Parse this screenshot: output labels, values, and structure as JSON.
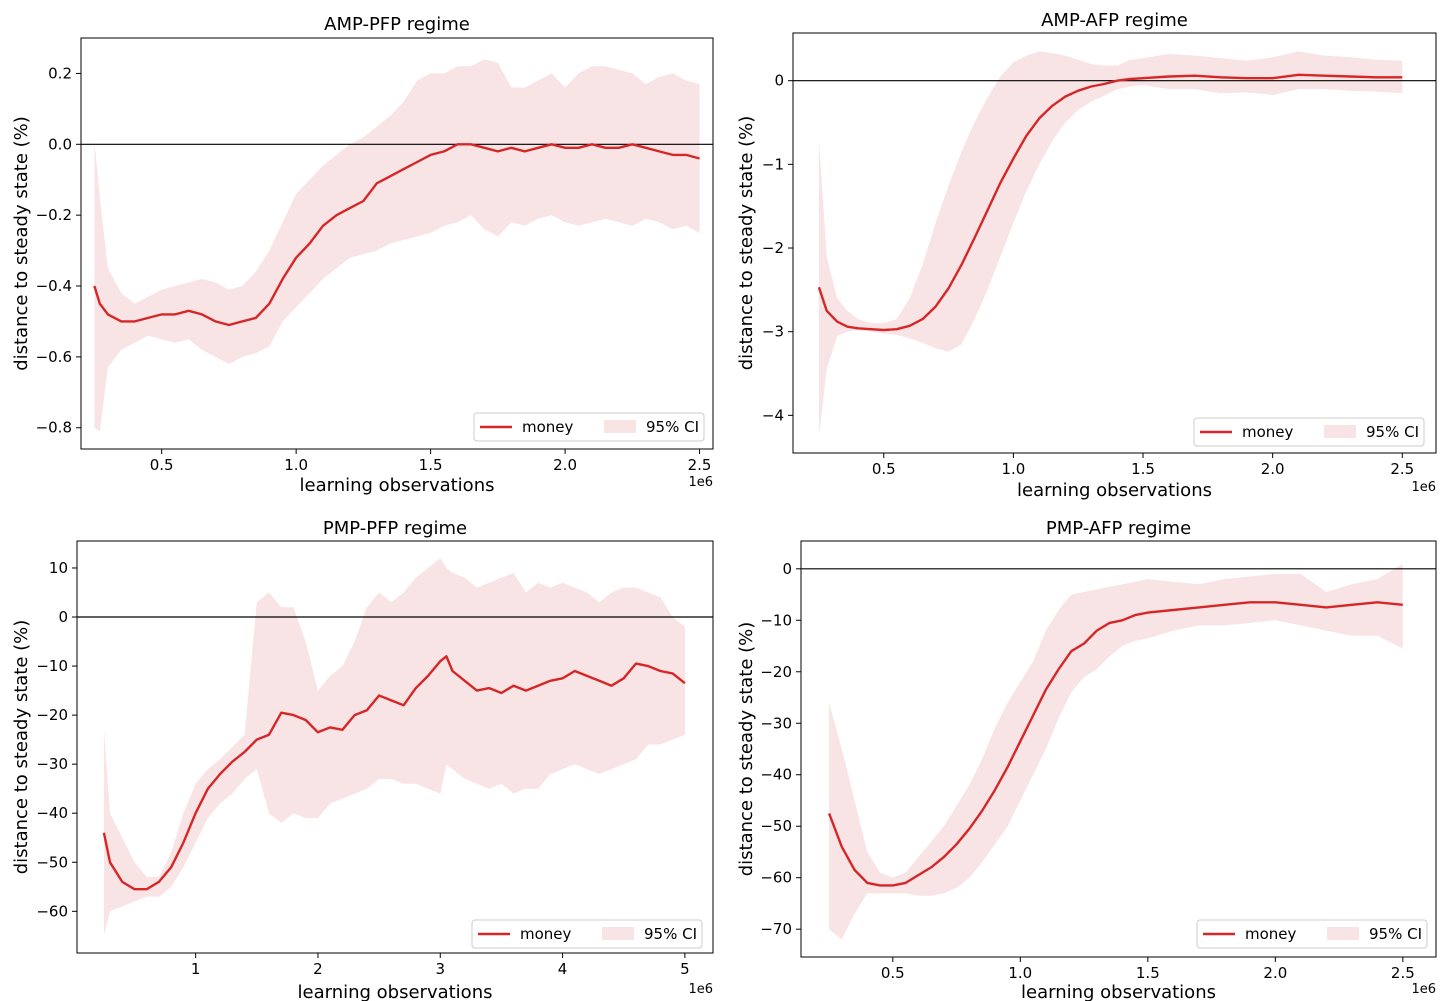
{
  "chart_data": [
    {
      "type": "line",
      "title": "AMP-PFP regime",
      "xlabel": "learning observations",
      "ylabel": "distance to steady state (%)",
      "x_offset_label": "1e6",
      "xlim": [
        0.2,
        2.55
      ],
      "ylim": [
        -0.86,
        0.3
      ],
      "xticks": [
        0.5,
        1.0,
        1.5,
        2.0,
        2.5
      ],
      "xtick_labels": [
        "0.5",
        "1.0",
        "1.5",
        "2.0",
        "2.5"
      ],
      "yticks": [
        -0.8,
        -0.6,
        -0.4,
        -0.2,
        0.0,
        0.2
      ],
      "ytick_labels": [
        "−0.8",
        "−0.6",
        "−0.4",
        "−0.2",
        "0.0",
        "0.2"
      ],
      "reference_line_y": 0,
      "legend_position": "lower-right",
      "series": [
        {
          "name": "money",
          "color": "#d62728",
          "x": [
            0.25,
            0.27,
            0.3,
            0.35,
            0.4,
            0.45,
            0.5,
            0.55,
            0.6,
            0.65,
            0.7,
            0.75,
            0.8,
            0.85,
            0.9,
            0.95,
            1.0,
            1.05,
            1.1,
            1.15,
            1.2,
            1.25,
            1.3,
            1.35,
            1.4,
            1.45,
            1.5,
            1.55,
            1.6,
            1.65,
            1.7,
            1.75,
            1.8,
            1.85,
            1.9,
            1.95,
            2.0,
            2.05,
            2.1,
            2.15,
            2.2,
            2.25,
            2.3,
            2.35,
            2.4,
            2.45,
            2.5
          ],
          "y": [
            -0.4,
            -0.45,
            -0.48,
            -0.5,
            -0.5,
            -0.49,
            -0.48,
            -0.48,
            -0.47,
            -0.48,
            -0.5,
            -0.51,
            -0.5,
            -0.49,
            -0.45,
            -0.38,
            -0.32,
            -0.28,
            -0.23,
            -0.2,
            -0.18,
            -0.16,
            -0.11,
            -0.09,
            -0.07,
            -0.05,
            -0.03,
            -0.02,
            0.0,
            0.0,
            -0.01,
            -0.02,
            -0.01,
            -0.02,
            -0.01,
            0.0,
            -0.01,
            -0.01,
            0.0,
            -0.01,
            -0.01,
            0.0,
            -0.01,
            -0.02,
            -0.03,
            -0.03,
            -0.04
          ]
        },
        {
          "name": "95% CI",
          "color": "#f8e4e4",
          "x": [
            0.25,
            0.27,
            0.3,
            0.35,
            0.4,
            0.45,
            0.5,
            0.55,
            0.6,
            0.65,
            0.7,
            0.75,
            0.8,
            0.85,
            0.9,
            0.95,
            1.0,
            1.05,
            1.1,
            1.15,
            1.2,
            1.25,
            1.3,
            1.35,
            1.4,
            1.45,
            1.5,
            1.55,
            1.6,
            1.65,
            1.7,
            1.75,
            1.8,
            1.85,
            1.9,
            1.95,
            2.0,
            2.05,
            2.1,
            2.15,
            2.2,
            2.25,
            2.3,
            2.35,
            2.4,
            2.45,
            2.5
          ],
          "lower": [
            -0.8,
            -0.81,
            -0.63,
            -0.58,
            -0.56,
            -0.54,
            -0.55,
            -0.56,
            -0.55,
            -0.58,
            -0.6,
            -0.62,
            -0.6,
            -0.59,
            -0.57,
            -0.5,
            -0.46,
            -0.42,
            -0.38,
            -0.35,
            -0.32,
            -0.31,
            -0.3,
            -0.28,
            -0.27,
            -0.26,
            -0.25,
            -0.23,
            -0.22,
            -0.2,
            -0.24,
            -0.26,
            -0.22,
            -0.23,
            -0.21,
            -0.2,
            -0.22,
            -0.23,
            -0.22,
            -0.21,
            -0.22,
            -0.23,
            -0.21,
            -0.22,
            -0.24,
            -0.23,
            -0.25
          ],
          "upper": [
            0.01,
            -0.15,
            -0.35,
            -0.42,
            -0.45,
            -0.43,
            -0.41,
            -0.4,
            -0.39,
            -0.38,
            -0.39,
            -0.41,
            -0.4,
            -0.36,
            -0.3,
            -0.22,
            -0.14,
            -0.1,
            -0.06,
            -0.03,
            0.0,
            0.02,
            0.05,
            0.08,
            0.12,
            0.18,
            0.2,
            0.2,
            0.22,
            0.22,
            0.24,
            0.23,
            0.16,
            0.16,
            0.18,
            0.2,
            0.16,
            0.2,
            0.22,
            0.22,
            0.21,
            0.2,
            0.17,
            0.19,
            0.2,
            0.18,
            0.17
          ]
        }
      ]
    },
    {
      "type": "line",
      "title": "AMP-AFP regime",
      "xlabel": "learning observations",
      "ylabel": "distance to steady state (%)",
      "x_offset_label": "1e6",
      "xlim": [
        0.15,
        2.63
      ],
      "ylim": [
        -4.45,
        0.57
      ],
      "xticks": [
        0.5,
        1.0,
        1.5,
        2.0,
        2.5
      ],
      "xtick_labels": [
        "0.5",
        "1.0",
        "1.5",
        "2.0",
        "2.5"
      ],
      "yticks": [
        -4,
        -3,
        -2,
        -1,
        0
      ],
      "ytick_labels": [
        "−4",
        "−3",
        "−2",
        "−1",
        "0"
      ],
      "reference_line_y": 0,
      "legend_position": "lower-right",
      "series": [
        {
          "name": "money",
          "color": "#d62728",
          "x": [
            0.25,
            0.28,
            0.32,
            0.36,
            0.4,
            0.45,
            0.5,
            0.55,
            0.6,
            0.65,
            0.7,
            0.75,
            0.8,
            0.85,
            0.9,
            0.95,
            1.0,
            1.05,
            1.1,
            1.15,
            1.2,
            1.25,
            1.3,
            1.35,
            1.4,
            1.45,
            1.5,
            1.6,
            1.7,
            1.8,
            1.9,
            2.0,
            2.1,
            2.2,
            2.3,
            2.4,
            2.5
          ],
          "y": [
            -2.47,
            -2.75,
            -2.88,
            -2.94,
            -2.96,
            -2.97,
            -2.98,
            -2.97,
            -2.93,
            -2.85,
            -2.7,
            -2.48,
            -2.2,
            -1.88,
            -1.55,
            -1.22,
            -0.93,
            -0.66,
            -0.45,
            -0.3,
            -0.19,
            -0.12,
            -0.07,
            -0.04,
            0.0,
            0.02,
            0.03,
            0.05,
            0.06,
            0.04,
            0.03,
            0.03,
            0.07,
            0.06,
            0.05,
            0.04,
            0.04
          ]
        },
        {
          "name": "95% CI",
          "color": "#f8e4e4",
          "x": [
            0.25,
            0.28,
            0.32,
            0.36,
            0.4,
            0.45,
            0.5,
            0.55,
            0.6,
            0.65,
            0.7,
            0.75,
            0.8,
            0.85,
            0.9,
            0.95,
            1.0,
            1.05,
            1.1,
            1.15,
            1.2,
            1.25,
            1.3,
            1.35,
            1.4,
            1.45,
            1.5,
            1.6,
            1.7,
            1.8,
            1.9,
            2.0,
            2.1,
            2.2,
            2.3,
            2.4,
            2.5
          ],
          "lower": [
            -4.25,
            -3.45,
            -3.05,
            -3.0,
            -2.98,
            -3.0,
            -3.02,
            -3.04,
            -3.08,
            -3.13,
            -3.2,
            -3.24,
            -3.15,
            -2.85,
            -2.5,
            -2.1,
            -1.7,
            -1.32,
            -1.0,
            -0.72,
            -0.5,
            -0.35,
            -0.25,
            -0.18,
            -0.1,
            -0.07,
            -0.05,
            -0.1,
            -0.1,
            -0.15,
            -0.14,
            -0.17,
            -0.1,
            -0.1,
            -0.12,
            -0.13,
            -0.15
          ],
          "upper": [
            -0.7,
            -2.1,
            -2.6,
            -2.75,
            -2.85,
            -2.9,
            -2.9,
            -2.85,
            -2.6,
            -2.2,
            -1.7,
            -1.25,
            -0.85,
            -0.5,
            -0.2,
            0.05,
            0.22,
            0.3,
            0.35,
            0.33,
            0.3,
            0.25,
            0.2,
            0.18,
            0.18,
            0.25,
            0.27,
            0.32,
            0.3,
            0.27,
            0.24,
            0.28,
            0.35,
            0.3,
            0.28,
            0.25,
            0.24
          ]
        }
      ]
    },
    {
      "type": "line",
      "title": "PMP-PFP regime",
      "xlabel": "learning observations",
      "ylabel": "distance to steady state (%)",
      "x_offset_label": "1e6",
      "xlim": [
        0.03,
        5.23
      ],
      "ylim": [
        -68.5,
        15.5
      ],
      "xticks": [
        1,
        2,
        3,
        4,
        5
      ],
      "xtick_labels": [
        "1",
        "2",
        "3",
        "4",
        "5"
      ],
      "yticks": [
        -60,
        -50,
        -40,
        -30,
        -20,
        -10,
        0,
        10
      ],
      "ytick_labels": [
        "−60",
        "−50",
        "−40",
        "−30",
        "−20",
        "−10",
        "0",
        "10"
      ],
      "reference_line_y": 0,
      "legend_position": "lower-right",
      "series": [
        {
          "name": "money",
          "color": "#d62728",
          "x": [
            0.25,
            0.3,
            0.4,
            0.5,
            0.6,
            0.7,
            0.8,
            0.9,
            1.0,
            1.1,
            1.2,
            1.3,
            1.4,
            1.5,
            1.6,
            1.7,
            1.8,
            1.9,
            2.0,
            2.1,
            2.2,
            2.3,
            2.4,
            2.5,
            2.6,
            2.7,
            2.8,
            2.9,
            3.0,
            3.05,
            3.1,
            3.2,
            3.3,
            3.4,
            3.5,
            3.6,
            3.7,
            3.8,
            3.9,
            4.0,
            4.1,
            4.2,
            4.3,
            4.4,
            4.5,
            4.6,
            4.7,
            4.8,
            4.9,
            5.0
          ],
          "y": [
            -44,
            -50,
            -54,
            -55.5,
            -55.5,
            -54,
            -51,
            -46,
            -40,
            -35,
            -32,
            -29.5,
            -27.5,
            -25,
            -24,
            -19.5,
            -20,
            -21,
            -23.5,
            -22.5,
            -23,
            -20,
            -19,
            -16,
            -17,
            -18,
            -14.5,
            -12,
            -9,
            -8,
            -11,
            -13,
            -15,
            -14.5,
            -15.5,
            -14,
            -15,
            -14,
            -13,
            -12.5,
            -11,
            -12,
            -13,
            -14,
            -12.5,
            -9.5,
            -10,
            -11,
            -11.5,
            -13.5
          ]
        },
        {
          "name": "95% CI",
          "color": "#f8e4e4",
          "x": [
            0.25,
            0.3,
            0.4,
            0.5,
            0.6,
            0.7,
            0.8,
            0.9,
            1.0,
            1.1,
            1.2,
            1.3,
            1.4,
            1.5,
            1.6,
            1.7,
            1.8,
            1.9,
            2.0,
            2.1,
            2.2,
            2.3,
            2.4,
            2.5,
            2.6,
            2.7,
            2.8,
            2.9,
            3.0,
            3.05,
            3.1,
            3.2,
            3.3,
            3.4,
            3.5,
            3.6,
            3.7,
            3.8,
            3.9,
            4.0,
            4.1,
            4.2,
            4.3,
            4.4,
            4.5,
            4.6,
            4.7,
            4.8,
            4.9,
            5.0
          ],
          "lower": [
            -65,
            -60,
            -59,
            -58,
            -57,
            -57,
            -55,
            -51,
            -46,
            -41,
            -38,
            -36,
            -33,
            -31,
            -40,
            -42,
            -40,
            -41,
            -41,
            -38,
            -37,
            -36,
            -35,
            -33,
            -33,
            -34,
            -34,
            -35,
            -36,
            -30,
            -31,
            -33,
            -34,
            -35,
            -34,
            -36,
            -35,
            -35,
            -32,
            -31,
            -30,
            -31,
            -32,
            -31,
            -30,
            -29,
            -26,
            -26,
            -25,
            -24
          ],
          "upper": [
            -23,
            -40,
            -45,
            -50,
            -53,
            -53,
            -48,
            -40,
            -34,
            -31,
            -29,
            -26.5,
            -24,
            3,
            5,
            2,
            2,
            -5,
            -15,
            -12,
            -10,
            -5,
            2,
            5,
            3,
            5,
            8,
            10,
            12,
            10,
            9,
            8,
            6,
            7,
            8,
            9,
            5,
            7,
            6,
            7,
            6,
            5,
            3,
            5,
            6,
            6,
            5,
            4,
            0,
            -2
          ]
        }
      ]
    },
    {
      "type": "line",
      "title": "PMP-AFP regime",
      "xlabel": "learning observations",
      "ylabel": "distance to steady state (%)",
      "x_offset_label": "1e6",
      "xlim": [
        0.14,
        2.63
      ],
      "ylim": [
        -75.4,
        5.4
      ],
      "xticks": [
        0.5,
        1.0,
        1.5,
        2.0,
        2.5
      ],
      "xtick_labels": [
        "0.5",
        "1.0",
        "1.5",
        "2.0",
        "2.5"
      ],
      "yticks": [
        -70,
        -60,
        -50,
        -40,
        -30,
        -20,
        -10,
        0
      ],
      "ytick_labels": [
        "−70",
        "−60",
        "−50",
        "−40",
        "−30",
        "−20",
        "−10",
        "0"
      ],
      "reference_line_y": 0,
      "legend_position": "lower-right",
      "series": [
        {
          "name": "money",
          "color": "#d62728",
          "x": [
            0.25,
            0.3,
            0.35,
            0.4,
            0.45,
            0.5,
            0.55,
            0.6,
            0.65,
            0.7,
            0.75,
            0.8,
            0.85,
            0.9,
            0.95,
            1.0,
            1.05,
            1.1,
            1.15,
            1.2,
            1.25,
            1.3,
            1.35,
            1.4,
            1.45,
            1.5,
            1.6,
            1.7,
            1.8,
            1.9,
            2.0,
            2.1,
            2.2,
            2.3,
            2.4,
            2.5
          ],
          "y": [
            -47.5,
            -54,
            -58.5,
            -61,
            -61.5,
            -61.5,
            -61,
            -59.5,
            -58,
            -56,
            -53.5,
            -50.5,
            -47,
            -43,
            -38.5,
            -33.5,
            -28.5,
            -23.5,
            -19.5,
            -16,
            -14.5,
            -12,
            -10.5,
            -10,
            -9,
            -8.5,
            -8,
            -7.5,
            -7,
            -6.5,
            -6.5,
            -7,
            -7.5,
            -7,
            -6.5,
            -7
          ]
        },
        {
          "name": "95% CI",
          "color": "#f8e4e4",
          "x": [
            0.25,
            0.3,
            0.35,
            0.4,
            0.45,
            0.5,
            0.55,
            0.6,
            0.65,
            0.7,
            0.75,
            0.8,
            0.85,
            0.9,
            0.95,
            1.0,
            1.05,
            1.1,
            1.15,
            1.2,
            1.25,
            1.3,
            1.35,
            1.4,
            1.45,
            1.5,
            1.6,
            1.7,
            1.8,
            1.9,
            2.0,
            2.1,
            2.2,
            2.3,
            2.4,
            2.5
          ],
          "lower": [
            -70,
            -72,
            -67,
            -63,
            -63,
            -63,
            -63,
            -63.5,
            -63.5,
            -63,
            -62,
            -60,
            -57,
            -53.5,
            -50,
            -45,
            -40,
            -35,
            -29,
            -24,
            -21,
            -19.5,
            -17,
            -15,
            -14,
            -13.5,
            -12,
            -11,
            -11,
            -10.5,
            -10,
            -11,
            -12,
            -13,
            -13,
            -15.5
          ],
          "upper": [
            -26,
            -35,
            -45,
            -55,
            -59,
            -60,
            -59,
            -56,
            -53,
            -50,
            -46,
            -42,
            -37,
            -31,
            -26,
            -22,
            -18,
            -12,
            -8,
            -5,
            -4.5,
            -4,
            -3.5,
            -3,
            -2.5,
            -2,
            -2.5,
            -3,
            -2,
            -1.5,
            -1,
            -1,
            -4.5,
            -3,
            -2,
            1
          ]
        }
      ]
    }
  ]
}
